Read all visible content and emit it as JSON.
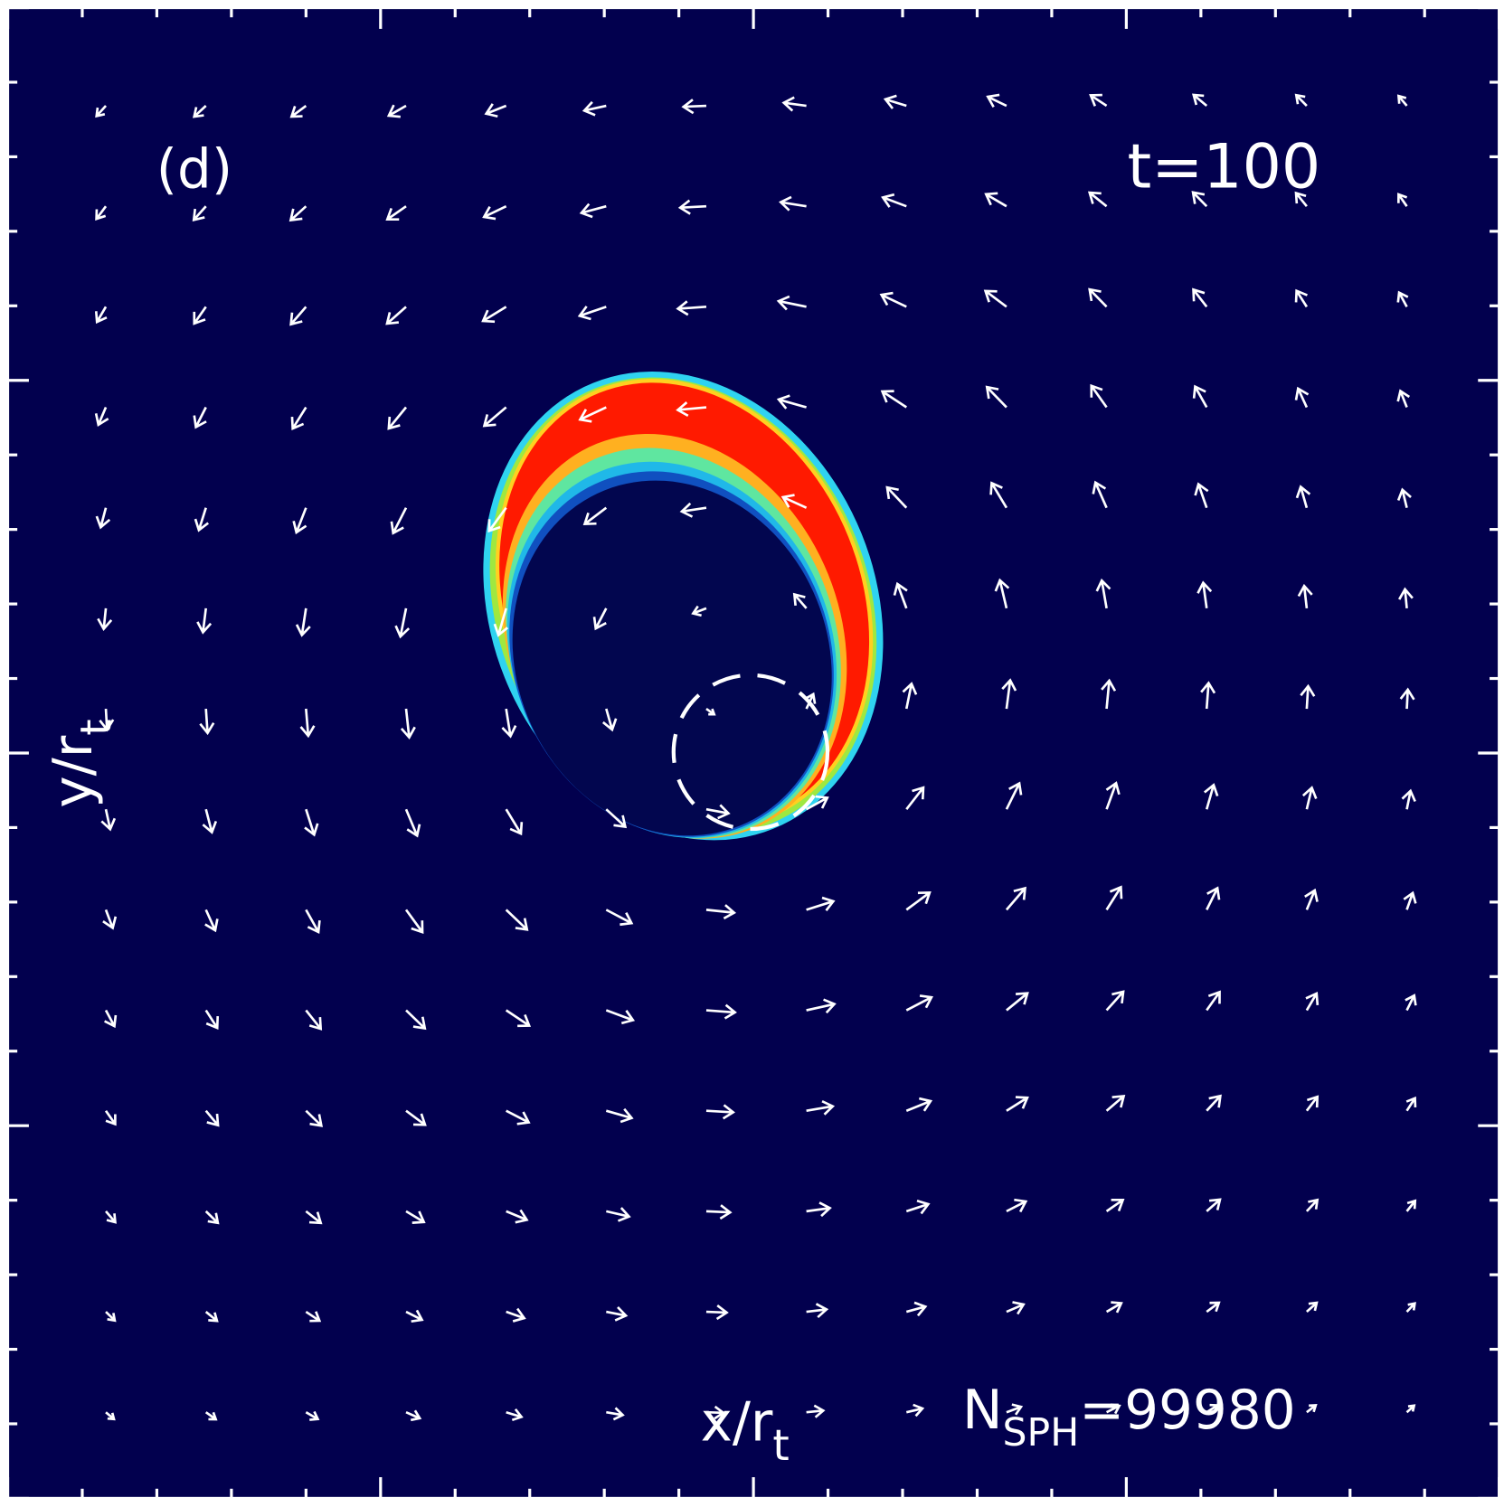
{
  "panel": {
    "label": "(d)",
    "time": "t=100",
    "x_label": "x/r",
    "x_label_sub": "t",
    "y_label": "y/r",
    "y_label_sub": "t",
    "n_label": "N",
    "n_label_sub": "SPH",
    "n_value": "=99980"
  }
}
